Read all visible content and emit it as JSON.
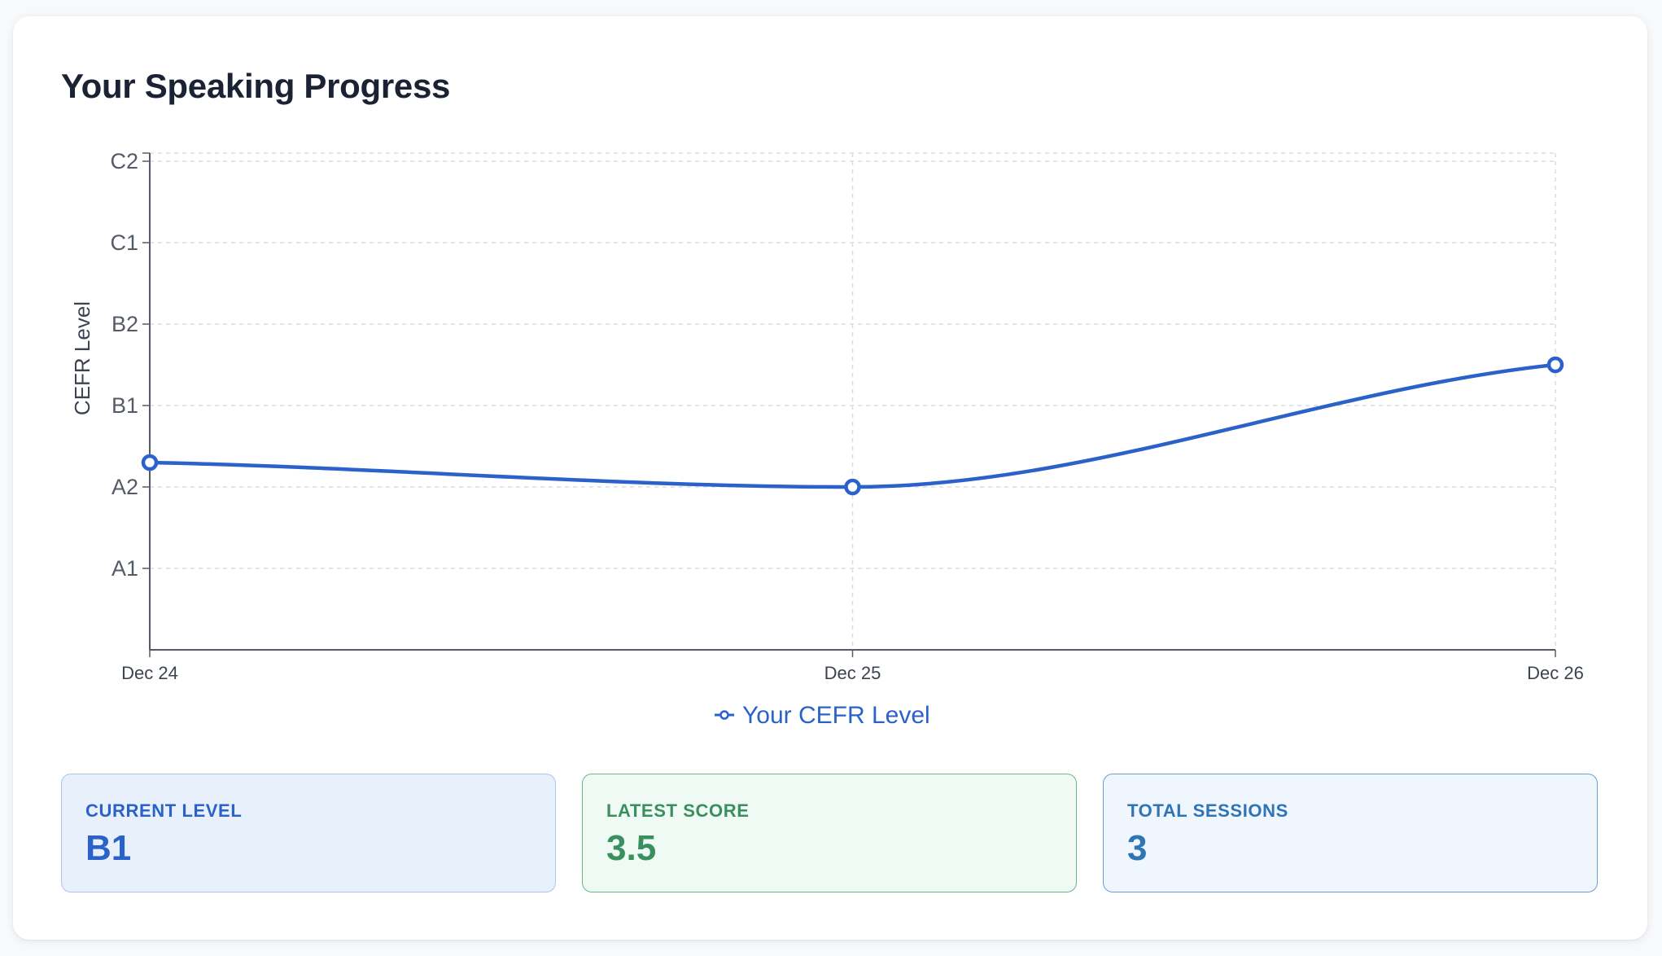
{
  "title": "Your Speaking Progress",
  "colors": {
    "line": "#2a62c9",
    "grid": "#dadde2",
    "axis": "#555b66"
  },
  "chart_data": {
    "type": "line",
    "ylabel": "CEFR Level",
    "y_categories": [
      "A1",
      "A2",
      "B1",
      "B2",
      "C1",
      "C2"
    ],
    "x": [
      "Dec 24",
      "Dec 25",
      "Dec 26"
    ],
    "series": [
      {
        "name": "Your CEFR Level",
        "values": [
          2.3,
          2.0,
          3.5
        ]
      }
    ],
    "ylim": [
      0,
      6.1
    ],
    "grid": true,
    "legend": "bottom-center"
  },
  "stats": [
    {
      "label": "CURRENT LEVEL",
      "value": "B1"
    },
    {
      "label": "LATEST SCORE",
      "value": "3.5"
    },
    {
      "label": "TOTAL SESSIONS",
      "value": "3"
    }
  ]
}
